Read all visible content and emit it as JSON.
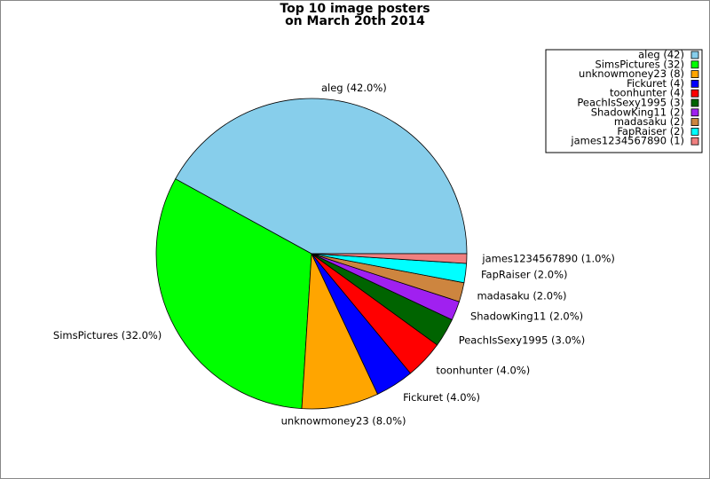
{
  "chart_data": {
    "type": "pie",
    "title": "Top 10 image posters\non March 20th 2014",
    "categories": [
      "aleg (42)",
      "SimsPictures (32)",
      "unknowmoney23 (8)",
      "Fickuret (4)",
      "toonhunter (4)",
      "PeachIsSexy1995 (3)",
      "ShadowKing11 (2)",
      "madasaku (2)",
      "FapRaiser (2)",
      "james1234567890 (1)"
    ],
    "values": [
      42,
      32,
      8,
      4,
      4,
      3,
      2,
      2,
      2,
      1
    ],
    "value_labels": [
      "aleg (42.0%)",
      "SimsPictures (32.0%)",
      "unknowmoney23 (8.0%)",
      "Fickuret (4.0%)",
      "toonhunter (4.0%)",
      "PeachIsSexy1995 (3.0%)",
      "ShadowKing11 (2.0%)",
      "madasaku (2.0%)",
      "FapRaiser (2.0%)",
      "james1234567890 (1.0%)"
    ],
    "colors": [
      "#87ceeb",
      "#00ff00",
      "#ffa500",
      "#0000ff",
      "#ff0000",
      "#006400",
      "#a020f0",
      "#cd853f",
      "#00ffff",
      "#f08080"
    ],
    "legend": "upper right"
  }
}
